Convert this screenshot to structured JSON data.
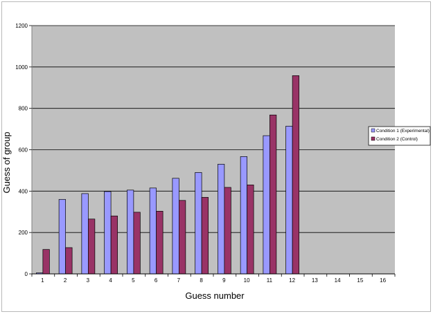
{
  "colors": {
    "plot_background": "#c0c0c0",
    "gridline": "#000000",
    "series1": "#9999ff",
    "series2": "#993366"
  },
  "chart_data": {
    "type": "bar",
    "title": "",
    "xlabel": "Guess number",
    "ylabel": "Guess of group",
    "categories": [
      "1",
      "2",
      "3",
      "4",
      "5",
      "6",
      "7",
      "8",
      "9",
      "10",
      "11",
      "12",
      "13",
      "14",
      "15",
      "16"
    ],
    "ylim": [
      0,
      1200
    ],
    "yticks": [
      0,
      200,
      400,
      600,
      800,
      1000,
      1200
    ],
    "grid": true,
    "legend_position": "right",
    "series": [
      {
        "name": "Condition 1 (Experimental)",
        "values": [
          5,
          360,
          388,
          398,
          405,
          415,
          462,
          490,
          530,
          567,
          668,
          714,
          null,
          null,
          null,
          null
        ]
      },
      {
        "name": "Condition 2 (Control)",
        "values": [
          118,
          127,
          265,
          280,
          298,
          303,
          355,
          370,
          418,
          430,
          768,
          958,
          null,
          null,
          null,
          null
        ]
      }
    ]
  }
}
